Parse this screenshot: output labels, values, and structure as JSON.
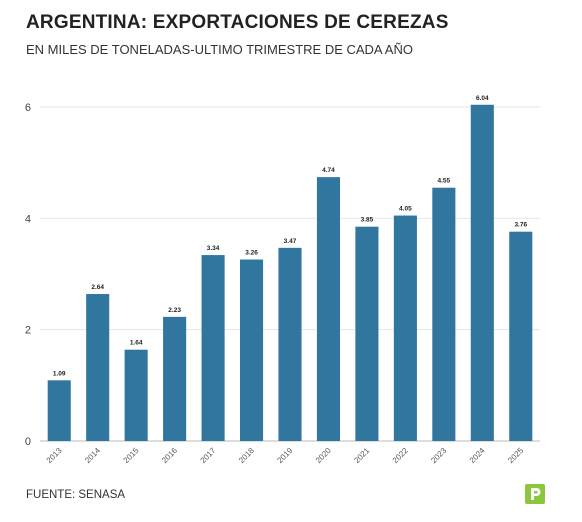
{
  "header": {
    "title": "ARGENTINA: EXPORTACIONES DE CEREZAS",
    "subtitle": "EN MILES DE TONELADAS-ULTIMO TRIMESTRE DE CADA AÑO"
  },
  "footer": {
    "source": "FUENTE: SENASA",
    "logo_icon": "brand-logo-icon",
    "logo_color": "#8cc63f"
  },
  "chart_data": {
    "type": "bar",
    "title": "ARGENTINA: EXPORTACIONES DE CEREZAS",
    "subtitle": "EN MILES DE TONELADAS-ULTIMO TRIMESTRE DE CADA AÑO",
    "xlabel": "",
    "ylabel": "",
    "categories": [
      "2013",
      "2014",
      "2015",
      "2016",
      "2017",
      "2018",
      "2019",
      "2020",
      "2021",
      "2022",
      "2023",
      "2024",
      "2025"
    ],
    "values": [
      1.09,
      2.64,
      1.64,
      2.23,
      3.34,
      3.26,
      3.47,
      4.74,
      3.85,
      4.05,
      4.55,
      6.04,
      3.76
    ],
    "value_labels": [
      "1.09",
      "2.64",
      "1.64",
      "2.23",
      "3.34",
      "3.26",
      "3.47",
      "4.74",
      "3.85",
      "4.05",
      "4.55",
      "6.04",
      "3.76"
    ],
    "ylim": [
      0,
      6.3
    ],
    "yticks": [
      0,
      2,
      4,
      6
    ],
    "ytick_labels": [
      "0",
      "2",
      "4",
      "6"
    ],
    "grid": true,
    "bar_color": "#31769f"
  }
}
